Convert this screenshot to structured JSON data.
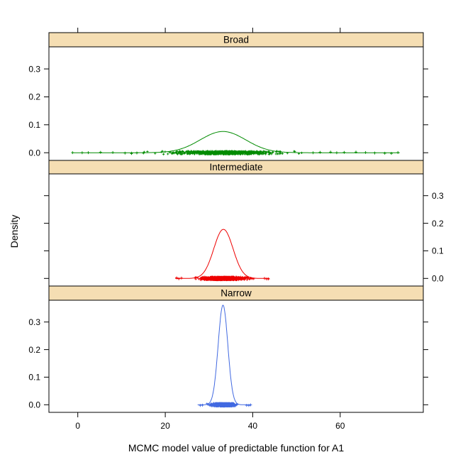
{
  "chart_data": {
    "type": "area",
    "subtype": "kernel-density-trellis",
    "title": "",
    "xlabel": "MCMC model value of predictable function for A1",
    "ylabel": "Density",
    "xlim": [
      -6.6,
      79.0
    ],
    "ylim": [
      -0.0275,
      0.379
    ],
    "xticks": [
      0,
      20,
      40,
      60
    ],
    "yticks": [
      0.0,
      0.1,
      0.2,
      0.3
    ],
    "ytick_labels": [
      "0.0",
      "0.1",
      "0.2",
      "0.3"
    ],
    "grid": false,
    "legend": "none",
    "strip_background": "#f5deb3",
    "strip_border": "#000000",
    "axis_color": "#000000",
    "panels": [
      {
        "label": "Broad",
        "color": "#008b00",
        "ytick_label_side": "left",
        "curve": {
          "mean": 33.2,
          "sd": 5.2,
          "peak_density": 0.076,
          "x_range": [
            -1.3,
            73.6
          ]
        },
        "rug": {
          "dense_range": [
            14.5,
            51.5
          ],
          "n_points": 700,
          "spread": {
            "n": 60,
            "sd": 9.0,
            "range": [
              5,
              62
            ]
          },
          "outliers": [
            -1.2,
            1.0,
            2.4,
            5.2,
            8.0,
            10.8,
            12.3,
            13.5,
            53.8,
            55.4,
            57.8,
            59.2,
            60.9,
            63.6,
            65.8,
            67.9,
            70.2,
            71.7,
            73.2
          ]
        }
      },
      {
        "label": "Intermediate",
        "color": "#ee0000",
        "ytick_label_side": "right",
        "curve": {
          "mean": 33.3,
          "sd": 2.2,
          "peak_density": 0.178,
          "x_range": [
            22.3,
            43.8
          ]
        },
        "rug": {
          "dense_range": [
            24.2,
            42.3
          ],
          "n_points": 900,
          "spread": {
            "n": 0,
            "sd": 0,
            "range": [
              0,
              0
            ]
          },
          "outliers": [
            22.6,
            23.1,
            23.7,
            42.7,
            43.2,
            43.6
          ]
        }
      },
      {
        "label": "Narrow",
        "color": "#4169e1",
        "ytick_label_side": "left",
        "curve": {
          "mean": 33.2,
          "sd": 1.1,
          "peak_density": 0.361,
          "x_range": [
            27.4,
            39.6
          ]
        },
        "rug": {
          "dense_range": [
            29.2,
            38.2
          ],
          "n_points": 900,
          "spread": {
            "n": 0,
            "sd": 0,
            "range": [
              0,
              0
            ]
          },
          "outliers": [
            28.0,
            28.5,
            38.6,
            39.1,
            39.5
          ]
        }
      }
    ]
  }
}
